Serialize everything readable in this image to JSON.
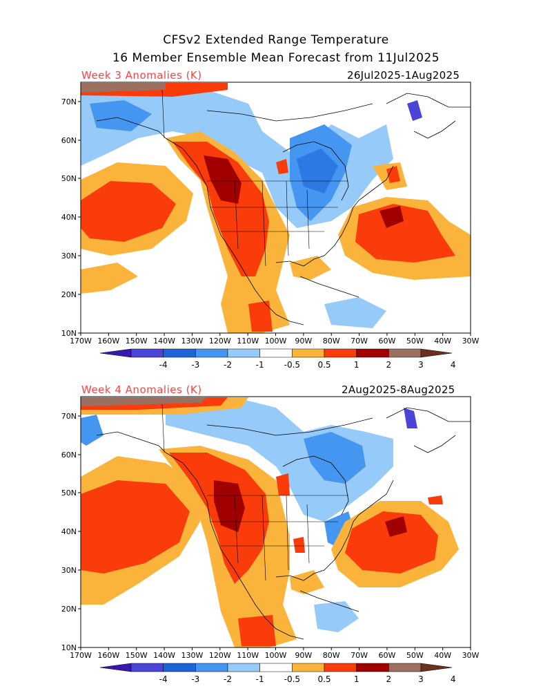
{
  "title_line1": "CFSv2 Extended Range Temperature",
  "title_line2": "16 Member Ensemble Mean Forecast from 11Jul2025",
  "panels": [
    {
      "label": "Week 3 Anomalies (K)",
      "dates": "26Jul2025-1Aug2025"
    },
    {
      "label": "Week 4 Anomalies (K)",
      "dates": "2Aug2025-8Aug2025"
    }
  ],
  "axes": {
    "lon_labels": [
      "170W",
      "160W",
      "150W",
      "140W",
      "130W",
      "120W",
      "110W",
      "100W",
      "90W",
      "80W",
      "70W",
      "60W",
      "50W",
      "40W",
      "30W"
    ],
    "lat_labels": [
      "70N",
      "60N",
      "50N",
      "40N",
      "30N",
      "20N",
      "10N"
    ]
  },
  "colorbar": {
    "labels": [
      "-4",
      "-3",
      "-2",
      "-1",
      "-0.5",
      "0.5",
      "1",
      "2",
      "3",
      "4"
    ],
    "colors": [
      "#3a18b0",
      "#4a44d8",
      "#1e64d8",
      "#4496f0",
      "#96caf8",
      "#ffffff",
      "#fab43c",
      "#fa3c0a",
      "#a00000",
      "#9c7060",
      "#6a3020"
    ]
  },
  "palette": {
    "cold1": "#96caf8",
    "cold2": "#4496f0",
    "cold3": "#1e64d8",
    "cold4": "#4a44d8",
    "warm1": "#fab43c",
    "warm2": "#fa3c0a",
    "warm3": "#a00000",
    "warm4": "#9c7060",
    "warm5": "#6a3020"
  }
}
